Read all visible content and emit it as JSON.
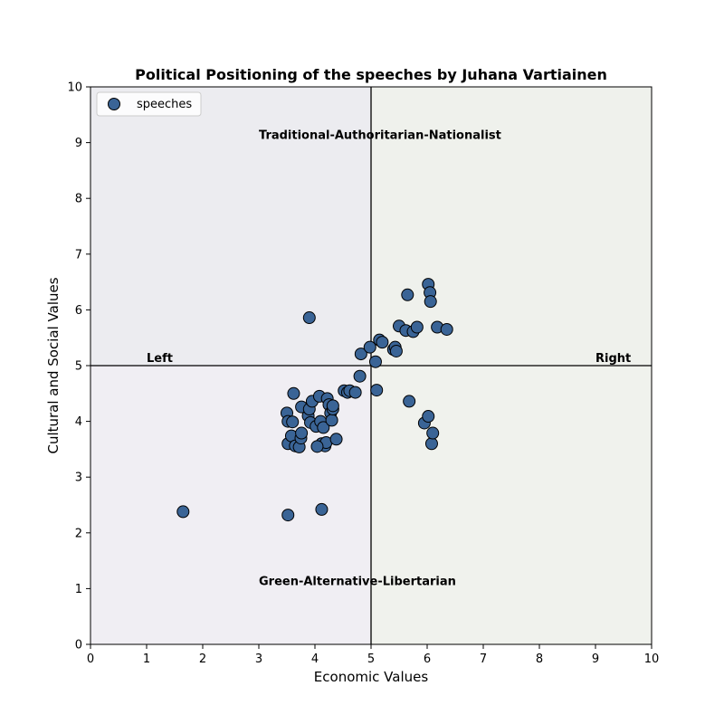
{
  "chart_data": {
    "type": "scatter",
    "title": "Political Positioning of the speeches by Juhana Vartiainen",
    "xlabel": "Economic Values",
    "ylabel": "Cultural and Social Values",
    "xlim": [
      0,
      10
    ],
    "ylim": [
      0,
      10
    ],
    "xticks": [
      "0",
      "1",
      "2",
      "3",
      "4",
      "5",
      "6",
      "7",
      "8",
      "9",
      "10"
    ],
    "yticks": [
      "0",
      "1",
      "2",
      "3",
      "4",
      "5",
      "6",
      "7",
      "8",
      "9",
      "10"
    ],
    "grid": false,
    "legend": {
      "position": "top-left",
      "entries": [
        "speeches"
      ]
    },
    "quadrant_colors": {
      "top_left": "#ececf0",
      "top_right": "#eff1ec",
      "bottom_left": "#f0eef3",
      "bottom_right": "#f0f2ed"
    },
    "marker": {
      "fill": "#3a6496",
      "edge": "#000000"
    },
    "divider_lines": {
      "x": 5,
      "y": 5
    },
    "annotations": [
      {
        "text": "Traditional-Authoritarian-Nationalist",
        "x": 3.0,
        "y": 9.0
      },
      {
        "text": "Green-Alternative-Libertarian",
        "x": 3.0,
        "y": 1.0
      },
      {
        "text": "Left",
        "x": 1.0,
        "y": 5.0
      },
      {
        "text": "Right",
        "x": 9.0,
        "y": 5.0
      }
    ],
    "series": [
      {
        "name": "speeches",
        "points": [
          [
            1.65,
            2.38
          ],
          [
            3.52,
            2.32
          ],
          [
            4.12,
            2.42
          ],
          [
            3.9,
            5.86
          ],
          [
            3.62,
            4.5
          ],
          [
            3.5,
            4.15
          ],
          [
            3.52,
            4.0
          ],
          [
            3.6,
            3.99
          ],
          [
            3.52,
            3.6
          ],
          [
            3.58,
            3.74
          ],
          [
            3.65,
            3.56
          ],
          [
            3.72,
            3.54
          ],
          [
            3.75,
            3.7
          ],
          [
            3.76,
            3.79
          ],
          [
            3.76,
            4.26
          ],
          [
            3.88,
            4.1
          ],
          [
            3.9,
            4.22
          ],
          [
            3.92,
            3.98
          ],
          [
            3.95,
            4.36
          ],
          [
            4.02,
            3.91
          ],
          [
            4.08,
            4.45
          ],
          [
            4.1,
            4.0
          ],
          [
            4.12,
            3.6
          ],
          [
            4.15,
            3.89
          ],
          [
            4.18,
            3.56
          ],
          [
            4.2,
            3.62
          ],
          [
            4.22,
            4.41
          ],
          [
            4.25,
            4.3
          ],
          [
            4.28,
            4.15
          ],
          [
            4.3,
            4.02
          ],
          [
            4.32,
            4.22
          ],
          [
            4.32,
            4.28
          ],
          [
            4.38,
            3.68
          ],
          [
            4.04,
            3.55
          ],
          [
            4.52,
            4.55
          ],
          [
            4.58,
            4.52
          ],
          [
            4.62,
            4.55
          ],
          [
            4.72,
            4.52
          ],
          [
            4.8,
            4.81
          ],
          [
            4.82,
            5.21
          ],
          [
            4.98,
            5.33
          ],
          [
            5.08,
            5.07
          ],
          [
            5.1,
            4.56
          ],
          [
            5.15,
            5.46
          ],
          [
            5.2,
            5.42
          ],
          [
            5.4,
            5.29
          ],
          [
            5.43,
            5.33
          ],
          [
            5.45,
            5.26
          ],
          [
            5.5,
            5.71
          ],
          [
            5.62,
            5.63
          ],
          [
            5.65,
            6.27
          ],
          [
            5.68,
            4.36
          ],
          [
            5.75,
            5.61
          ],
          [
            5.82,
            5.69
          ],
          [
            5.95,
            3.97
          ],
          [
            6.02,
            4.09
          ],
          [
            6.02,
            6.46
          ],
          [
            6.05,
            6.31
          ],
          [
            6.06,
            6.15
          ],
          [
            6.08,
            3.6
          ],
          [
            6.1,
            3.79
          ],
          [
            6.18,
            5.69
          ],
          [
            6.35,
            5.65
          ]
        ]
      }
    ]
  }
}
